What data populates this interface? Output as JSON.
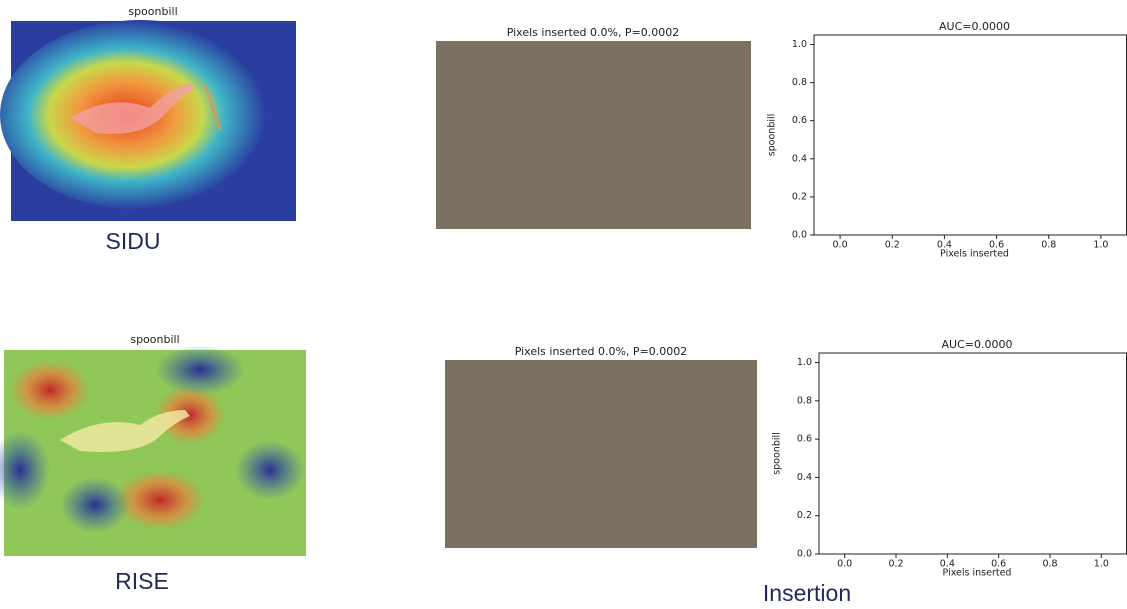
{
  "rows": [
    {
      "heatmap_title": "spoonbill",
      "method": "SIDU",
      "insertion_title": "Pixels inserted 0.0%, P=0.0002",
      "plot": {
        "title": "AUC=0.0000",
        "ylabel": "spoonbill",
        "xlabel": "Pixels inserted",
        "xlim": [
          -0.1,
          1.1
        ],
        "ylim": [
          0,
          1.05
        ],
        "xticks": [
          {
            "value": 0,
            "label": "0.0"
          },
          0.2,
          0.4,
          0.6,
          0.8,
          {
            "value": 1,
            "label": "1.0"
          }
        ],
        "yticks": [
          {
            "value": 0,
            "label": "0.0"
          },
          0.2,
          0.4,
          0.6,
          0.8,
          {
            "value": 1,
            "label": "1.0"
          }
        ]
      }
    },
    {
      "heatmap_title": "spoonbill",
      "method": "RISE",
      "insertion_title": "Pixels inserted 0.0%, P=0.0002",
      "plot": {
        "title": "AUC=0.0000",
        "ylabel": "spoonbill",
        "xlabel": "Pixels inserted",
        "xlim": [
          -0.1,
          1.1
        ],
        "ylim": [
          0,
          1.05
        ],
        "xticks": [
          {
            "value": 0,
            "label": "0.0"
          },
          0.2,
          0.4,
          0.6,
          0.8,
          {
            "value": 1,
            "label": "1.0"
          }
        ],
        "yticks": [
          {
            "value": 0,
            "label": "0.0"
          },
          0.2,
          0.4,
          0.6,
          0.8,
          {
            "value": 1,
            "label": "1.0"
          }
        ]
      }
    }
  ],
  "caption": "Insertion"
}
